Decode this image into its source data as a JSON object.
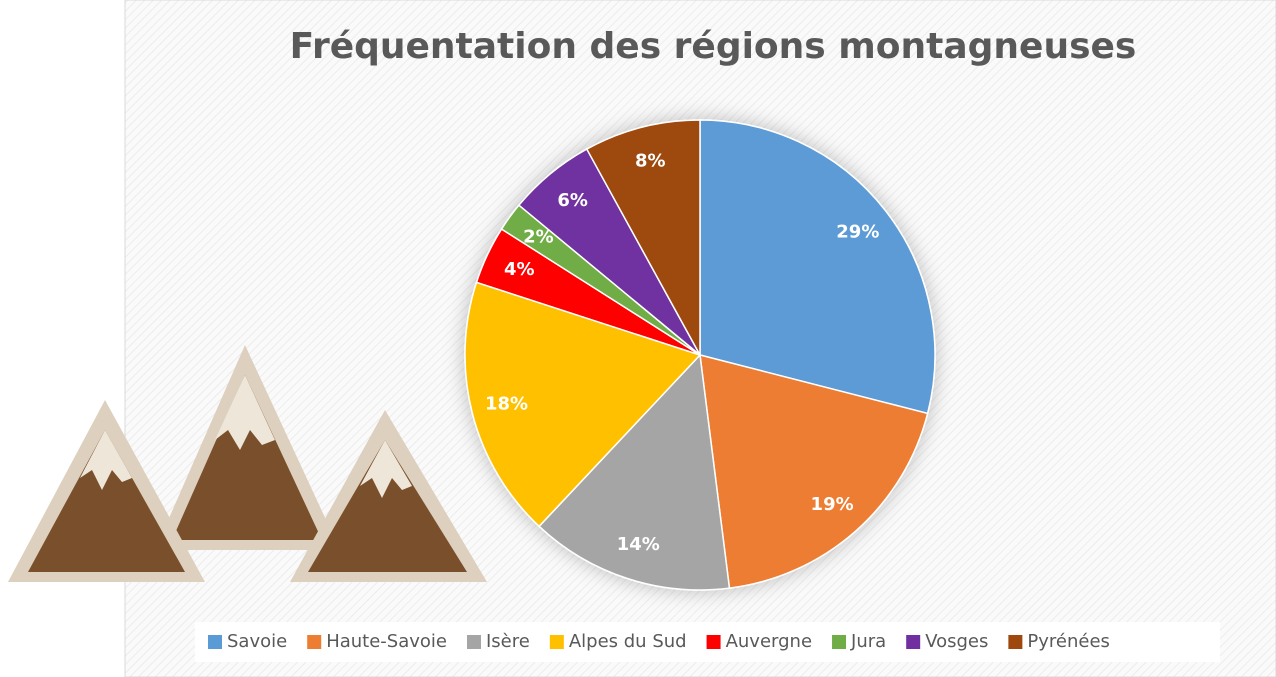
{
  "chart_data": {
    "type": "pie",
    "title": "Fréquentation des régions montagneuses",
    "categories": [
      "Savoie",
      "Haute-Savoie",
      "Isère",
      "Alpes du Sud",
      "Auvergne",
      "Jura",
      "Vosges",
      "Pyrénées"
    ],
    "values": [
      29,
      19,
      14,
      18,
      4,
      2,
      6,
      8
    ],
    "value_labels": [
      "29%",
      "19%",
      "14%",
      "18%",
      "4%",
      "2%",
      "6%",
      "8%"
    ],
    "colors": [
      "#5b9bd5",
      "#ed7d31",
      "#a5a5a5",
      "#ffc000",
      "#ff0000",
      "#70ad47",
      "#7030a0",
      "#9e480e"
    ],
    "legend": "bottom"
  }
}
